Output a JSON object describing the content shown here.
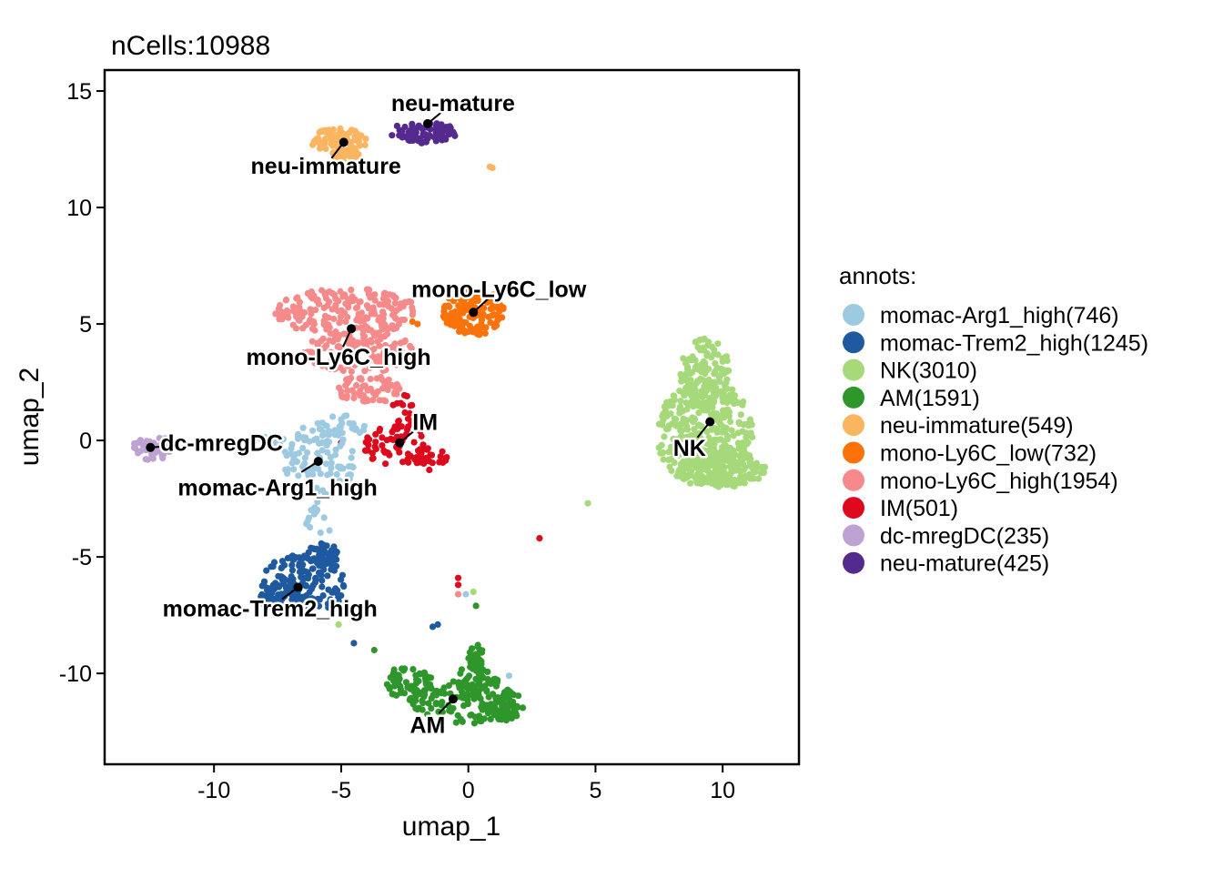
{
  "chart_data": {
    "type": "scatter",
    "title": "nCells:10988",
    "xlabel": "umap_1",
    "ylabel": "umap_2",
    "xlim": [
      -14.3,
      13.0
    ],
    "ylim": [
      -13.9,
      15.9
    ],
    "xticks": [
      -10,
      -5,
      0,
      5,
      10
    ],
    "yticks": [
      -10,
      -5,
      0,
      5,
      10,
      15
    ],
    "xtick_labels": [
      "-10",
      "-5",
      "0",
      "5",
      "10"
    ],
    "ytick_labels": [
      "-10",
      "-5",
      "0",
      "5",
      "10",
      "15"
    ],
    "grid": false,
    "legend": {
      "title": "annots:",
      "position": "right"
    },
    "series": [
      {
        "name": "momac-Arg1_high(746)",
        "label": "momac-Arg1_high",
        "count": 746,
        "color": "#9ecae1",
        "centroid": [
          -5.9,
          -0.9
        ],
        "label_pos": [
          -7.5,
          -2.0
        ]
      },
      {
        "name": "momac-Trem2_high(1245)",
        "label": "momac-Trem2_high",
        "count": 1245,
        "color": "#1f5aa0",
        "centroid": [
          -6.7,
          -6.3
        ],
        "label_pos": [
          -7.8,
          -7.2
        ]
      },
      {
        "name": "NK(3010)",
        "label": "NK",
        "count": 3010,
        "color": "#a6d97a",
        "centroid": [
          9.5,
          0.8
        ],
        "label_pos": [
          8.7,
          -0.3
        ]
      },
      {
        "name": "AM(1591)",
        "label": "AM",
        "count": 1591,
        "color": "#2e962a",
        "centroid": [
          -0.6,
          -11.1
        ],
        "label_pos": [
          -1.6,
          -12.2
        ]
      },
      {
        "name": "neu-immature(549)",
        "label": "neu-immature",
        "count": 549,
        "color": "#fab560",
        "centroid": [
          -4.9,
          12.8
        ],
        "label_pos": [
          -5.6,
          11.8
        ]
      },
      {
        "name": "mono-Ly6C_low(732)",
        "label": "mono-Ly6C_low",
        "count": 732,
        "color": "#fb720a",
        "centroid": [
          0.2,
          5.5
        ],
        "label_pos": [
          1.2,
          6.5
        ]
      },
      {
        "name": "mono-Ly6C_high(1954)",
        "label": "mono-Ly6C_high",
        "count": 1954,
        "color": "#f68a8a",
        "centroid": [
          -4.6,
          4.8
        ],
        "label_pos": [
          -5.1,
          3.6
        ]
      },
      {
        "name": "IM(501)",
        "label": "IM",
        "count": 501,
        "color": "#dd0a1e",
        "centroid": [
          -2.7,
          -0.1
        ],
        "label_pos": [
          -1.7,
          0.8
        ]
      },
      {
        "name": "dc-mregDC(235)",
        "label": "dc-mregDC",
        "count": 235,
        "color": "#bea2d2",
        "centroid": [
          -12.5,
          -0.3
        ],
        "label_pos": [
          -9.7,
          -0.1
        ]
      },
      {
        "name": "neu-mature(425)",
        "label": "neu-mature",
        "count": 425,
        "color": "#542a8f",
        "centroid": [
          -1.6,
          13.6
        ],
        "label_pos": [
          -0.6,
          14.5
        ]
      }
    ]
  }
}
